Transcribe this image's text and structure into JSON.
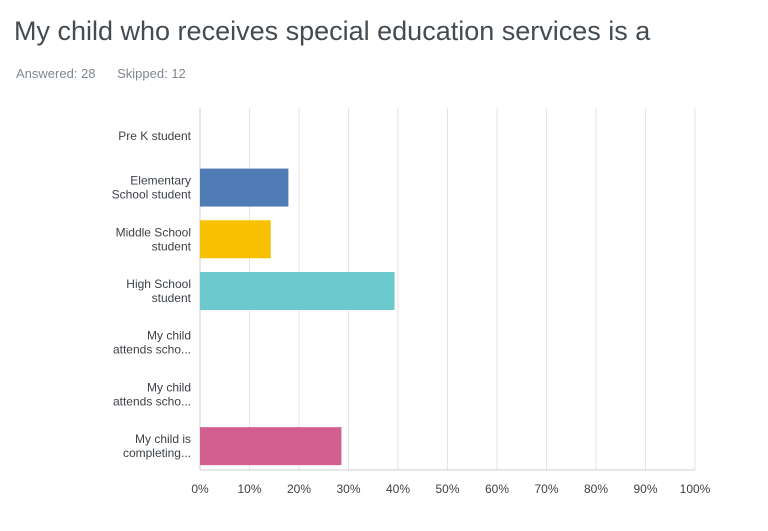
{
  "question": {
    "title": "My child who receives special education services is a",
    "answered_label": "Answered: 28",
    "skipped_label": "Skipped: 12"
  },
  "chart_data": {
    "type": "bar",
    "orientation": "horizontal",
    "categories": [
      [
        "Pre K student"
      ],
      [
        "Elementary",
        "School student"
      ],
      [
        "Middle School",
        "student"
      ],
      [
        "High School",
        "student"
      ],
      [
        "My child",
        "attends scho..."
      ],
      [
        "My child",
        "attends scho..."
      ],
      [
        "My child is",
        "completing..."
      ]
    ],
    "values": [
      0,
      17.86,
      14.29,
      39.29,
      0,
      0,
      28.57
    ],
    "colors": [
      "#cccccc",
      "#507cb6",
      "#f7c000",
      "#6bc8cd",
      "#cccccc",
      "#cccccc",
      "#d25f90"
    ],
    "xlim": [
      0,
      100
    ],
    "xticks": [
      "0%",
      "10%",
      "20%",
      "30%",
      "40%",
      "50%",
      "60%",
      "70%",
      "80%",
      "90%",
      "100%"
    ],
    "grid": true
  }
}
